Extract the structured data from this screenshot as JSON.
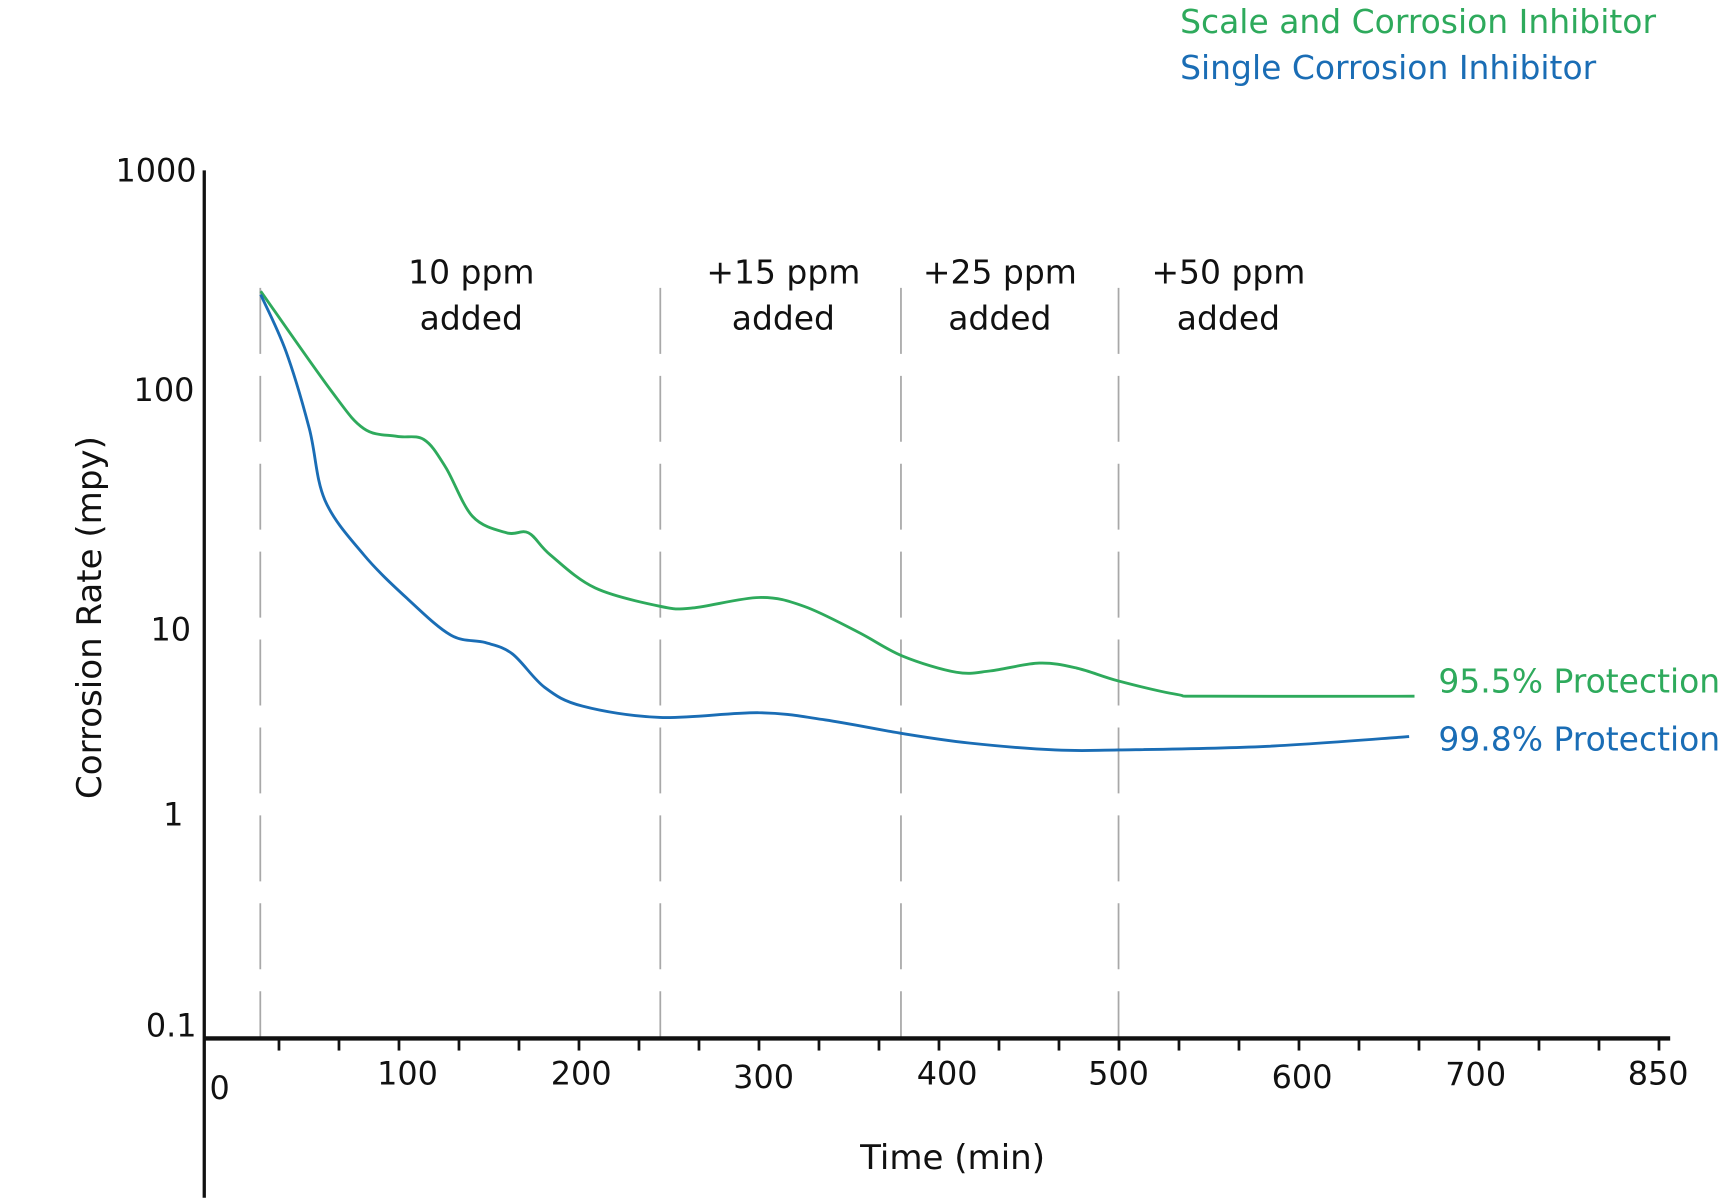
{
  "chart_data": {
    "type": "line",
    "title": "",
    "xlabel": "Time (min)",
    "ylabel": "Corrosion Rate (mpy)",
    "y_scale": "log",
    "ylim": [
      0.1,
      1000
    ],
    "xlim": [
      0,
      850
    ],
    "x_ticks": [
      "0",
      "100",
      "200",
      "300",
      "400",
      "500",
      "600",
      "700",
      "850"
    ],
    "y_ticks": [
      "1000",
      "100",
      "10",
      "1",
      "0.1"
    ],
    "grid": false,
    "legend": {
      "position": "top-right",
      "entries": [
        "Scale and Corrosion Inhibitor",
        "Single Corrosion Inhibitor"
      ]
    },
    "dosing_events": [
      {
        "x": 29,
        "label_line1": "10 ppm",
        "label_line2": "added"
      },
      {
        "x": 245,
        "label_line1": "+15 ppm",
        "label_line2": "added"
      },
      {
        "x": 379,
        "label_line1": "+25 ppm",
        "label_line2": "added"
      },
      {
        "x": 500,
        "label_line1": "+50 ppm",
        "label_line2": "added"
      }
    ],
    "series": [
      {
        "name": "Scale and Corrosion Inhibitor",
        "color": "#2eaa5c",
        "end_label": "95.5%  Protection",
        "x": [
          29,
          65,
          82,
          99,
          114,
          126,
          141,
          160,
          172,
          184,
          209,
          245,
          263,
          300,
          325,
          355,
          380,
          410,
          429,
          456,
          477,
          500,
          532,
          550,
          664
        ],
        "y": [
          282,
          100,
          69,
          64,
          62,
          47.5,
          29.5,
          25.2,
          25.2,
          20.4,
          14.8,
          12.4,
          12.2,
          13.5,
          12.4,
          9.6,
          7.1,
          5.8,
          5.9,
          6.5,
          6.1,
          5.2,
          4.4,
          4.3,
          4.3
        ]
      },
      {
        "name": "Single Corrosion Inhibitor",
        "color": "#1a6db5",
        "end_label": "99.8%  Protection",
        "x": [
          29,
          42,
          54,
          62,
          82,
          105,
          129,
          148,
          163,
          181,
          202,
          245,
          300,
          337,
          380,
          417,
          465,
          500,
          581,
          661
        ],
        "y": [
          272,
          150,
          69,
          34.6,
          20.4,
          13.3,
          9.2,
          8.4,
          7.3,
          4.8,
          3.8,
          3.3,
          3.5,
          3.2,
          2.7,
          2.4,
          2.2,
          2.2,
          2.3,
          2.6
        ]
      }
    ]
  }
}
